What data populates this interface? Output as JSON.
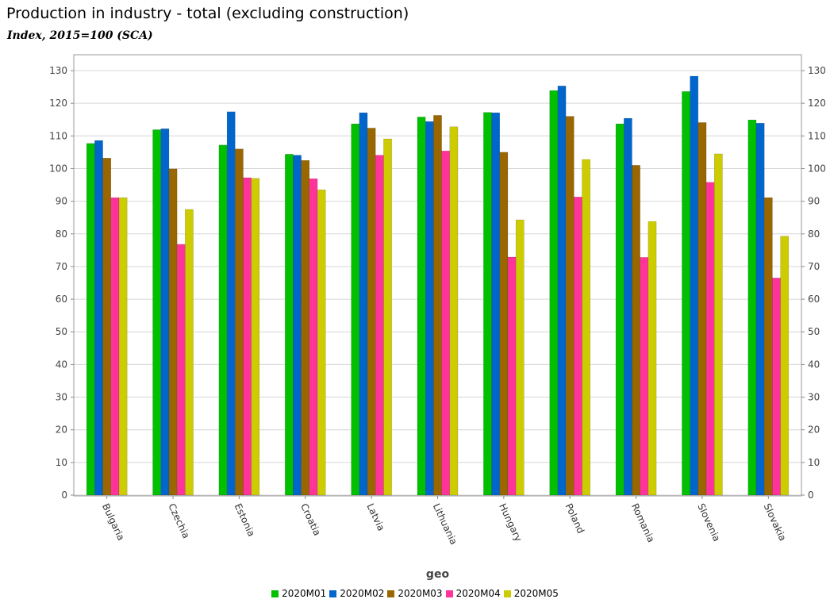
{
  "chart_data": {
    "type": "bar",
    "title": "Production in industry - total (excluding construction)",
    "subtitle": "Index, 2015=100 (SCA)",
    "xlabel": "geo",
    "ylabel": "",
    "ylim": [
      0,
      130
    ],
    "yticks": [
      0,
      10,
      20,
      30,
      40,
      50,
      60,
      70,
      80,
      90,
      100,
      110,
      120,
      130
    ],
    "grid": true,
    "legend_position": "bottom",
    "categories": [
      "Bulgaria",
      "Czechia",
      "Estonia",
      "Croatia",
      "Latvia",
      "Lithuania",
      "Hungary",
      "Poland",
      "Romania",
      "Slovenia",
      "Slovakia"
    ],
    "series": [
      {
        "name": "2020M01",
        "color": "#00c000",
        "values": [
          107.7,
          111.9,
          107.2,
          104.4,
          113.7,
          115.8,
          117.2,
          123.9,
          113.7,
          123.6,
          114.9
        ]
      },
      {
        "name": "2020M02",
        "color": "#0066cc",
        "values": [
          108.6,
          112.2,
          117.4,
          104.1,
          117.1,
          114.4,
          117.1,
          125.3,
          115.4,
          128.3,
          113.9
        ]
      },
      {
        "name": "2020M03",
        "color": "#996600",
        "values": [
          103.2,
          99.9,
          106.0,
          102.5,
          112.4,
          116.3,
          105.0,
          116.0,
          101.0,
          114.1,
          91.1
        ]
      },
      {
        "name": "2020M04",
        "color": "#ff3399",
        "values": [
          91.1,
          76.8,
          97.2,
          96.9,
          104.1,
          105.4,
          72.9,
          91.3,
          72.8,
          95.8,
          66.5
        ]
      },
      {
        "name": "2020M05",
        "color": "#cccc00",
        "values": [
          91.1,
          87.5,
          97.0,
          93.5,
          109.1,
          112.8,
          84.3,
          102.8,
          83.8,
          104.5,
          79.3
        ]
      }
    ]
  }
}
